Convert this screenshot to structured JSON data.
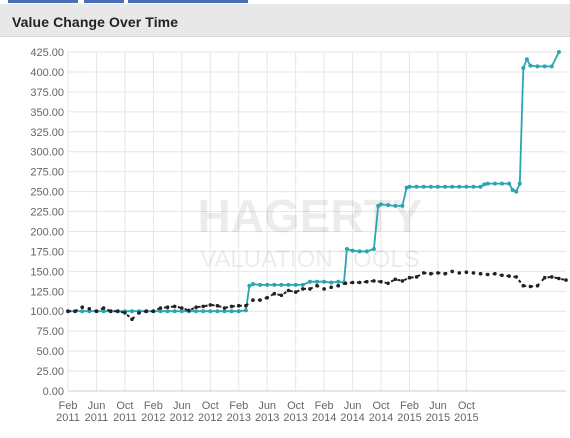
{
  "header": {
    "title": "Value Change Over Time"
  },
  "watermark": {
    "brand": "HAGERTY",
    "tagline": "VALUATION TOOLS"
  },
  "colors": {
    "series_a": "#2aa6b1",
    "series_b": "#222222",
    "grid": "#e6e6e6",
    "axis_text": "#666666"
  },
  "chart_data": {
    "type": "line",
    "title": "Value Change Over Time",
    "xlabel": "",
    "ylabel": "",
    "ylim": [
      0,
      425
    ],
    "yticks": [
      "0.00",
      "25.00",
      "50.00",
      "75.00",
      "100.00",
      "125.00",
      "150.00",
      "175.00",
      "200.00",
      "225.00",
      "250.00",
      "275.00",
      "300.00",
      "325.00",
      "350.00",
      "375.00",
      "400.00",
      "425.00"
    ],
    "xticks": [
      {
        "month": "Feb",
        "year": "2011",
        "t": 0
      },
      {
        "month": "Jun",
        "year": "2011",
        "t": 4
      },
      {
        "month": "Oct",
        "year": "2011",
        "t": 8
      },
      {
        "month": "Feb",
        "year": "2012",
        "t": 12
      },
      {
        "month": "Jun",
        "year": "2012",
        "t": 16
      },
      {
        "month": "Oct",
        "year": "2012",
        "t": 20
      },
      {
        "month": "Feb",
        "year": "2013",
        "t": 24
      },
      {
        "month": "Jun",
        "year": "2013",
        "t": 28
      },
      {
        "month": "Oct",
        "year": "2013",
        "t": 32
      },
      {
        "month": "Feb",
        "year": "2014",
        "t": 36
      },
      {
        "month": "Jun",
        "year": "2014",
        "t": 40
      },
      {
        "month": "Oct",
        "year": "2014",
        "t": 44
      },
      {
        "month": "Feb",
        "year": "2015",
        "t": 48
      },
      {
        "month": "Jun",
        "year": "2015",
        "t": 52
      },
      {
        "month": "Oct",
        "year": "2015",
        "t": 56
      }
    ],
    "series": [
      {
        "style": "solid",
        "points": [
          [
            0,
            100
          ],
          [
            1,
            100
          ],
          [
            2,
            100
          ],
          [
            3,
            100
          ],
          [
            4,
            100
          ],
          [
            5,
            100
          ],
          [
            6,
            100
          ],
          [
            7,
            100
          ],
          [
            8,
            100
          ],
          [
            9,
            100
          ],
          [
            10,
            100
          ],
          [
            11,
            100
          ],
          [
            12,
            100
          ],
          [
            13,
            100
          ],
          [
            14,
            100
          ],
          [
            15,
            100
          ],
          [
            16,
            100
          ],
          [
            17,
            100
          ],
          [
            18,
            100
          ],
          [
            19,
            100
          ],
          [
            20,
            100
          ],
          [
            21,
            100
          ],
          [
            22,
            100
          ],
          [
            23,
            100
          ],
          [
            24,
            100
          ],
          [
            25,
            101
          ],
          [
            25.5,
            132
          ],
          [
            26,
            134
          ],
          [
            27,
            133
          ],
          [
            28,
            133
          ],
          [
            29,
            133
          ],
          [
            30,
            133
          ],
          [
            31,
            133
          ],
          [
            32,
            133
          ],
          [
            33,
            133
          ],
          [
            34,
            137
          ],
          [
            35,
            137
          ],
          [
            36,
            137
          ],
          [
            37,
            136
          ],
          [
            38,
            137
          ],
          [
            38.8,
            136
          ],
          [
            39.2,
            178
          ],
          [
            40,
            176
          ],
          [
            41,
            175
          ],
          [
            42,
            175
          ],
          [
            43,
            178
          ],
          [
            43.6,
            232
          ],
          [
            44,
            234
          ],
          [
            45,
            233
          ],
          [
            46,
            232
          ],
          [
            47,
            232
          ],
          [
            47.6,
            255
          ],
          [
            48,
            256
          ],
          [
            49,
            256
          ],
          [
            50,
            256
          ],
          [
            51,
            256
          ],
          [
            52,
            256
          ],
          [
            53,
            256
          ],
          [
            54,
            256
          ],
          [
            55,
            256
          ],
          [
            56,
            256
          ],
          [
            57,
            256
          ],
          [
            58,
            256
          ],
          [
            58.5,
            259
          ],
          [
            59,
            260
          ],
          [
            60,
            260
          ],
          [
            61,
            260
          ],
          [
            62,
            260
          ],
          [
            62.5,
            252
          ],
          [
            63,
            250
          ],
          [
            63.5,
            260
          ],
          [
            64,
            405
          ],
          [
            64.5,
            416
          ],
          [
            65,
            408
          ],
          [
            66,
            407
          ],
          [
            67,
            407
          ],
          [
            68,
            407
          ],
          [
            69,
            425
          ]
        ]
      },
      {
        "style": "dashed",
        "points": [
          [
            0,
            100
          ],
          [
            1,
            100
          ],
          [
            2,
            105
          ],
          [
            3,
            103
          ],
          [
            4,
            100
          ],
          [
            5,
            104
          ],
          [
            6,
            100
          ],
          [
            7,
            100
          ],
          [
            8,
            98
          ],
          [
            9,
            90
          ],
          [
            10,
            98
          ],
          [
            11,
            100
          ],
          [
            12,
            100
          ],
          [
            13,
            104
          ],
          [
            14,
            105
          ],
          [
            15,
            106
          ],
          [
            16,
            104
          ],
          [
            17,
            101
          ],
          [
            18,
            105
          ],
          [
            19,
            106
          ],
          [
            20,
            108
          ],
          [
            21,
            107
          ],
          [
            22,
            104
          ],
          [
            23,
            106
          ],
          [
            24,
            107
          ],
          [
            25,
            107
          ],
          [
            26,
            114
          ],
          [
            27,
            114
          ],
          [
            28,
            117
          ],
          [
            29,
            122
          ],
          [
            30,
            120
          ],
          [
            31,
            126
          ],
          [
            32,
            124
          ],
          [
            33,
            128
          ],
          [
            34,
            128
          ],
          [
            35,
            132
          ],
          [
            36,
            128
          ],
          [
            37,
            130
          ],
          [
            38,
            132
          ],
          [
            39,
            135
          ],
          [
            40,
            136
          ],
          [
            41,
            136
          ],
          [
            42,
            137
          ],
          [
            43,
            138
          ],
          [
            44,
            137
          ],
          [
            45,
            135
          ],
          [
            46,
            140
          ],
          [
            47,
            138
          ],
          [
            48,
            142
          ],
          [
            49,
            143
          ],
          [
            50,
            148
          ],
          [
            51,
            147
          ],
          [
            52,
            148
          ],
          [
            53,
            147
          ],
          [
            54,
            150
          ],
          [
            55,
            148
          ],
          [
            56,
            149
          ],
          [
            57,
            148
          ],
          [
            58,
            147
          ],
          [
            59,
            146
          ],
          [
            60,
            147
          ],
          [
            61,
            145
          ],
          [
            62,
            144
          ],
          [
            63,
            143
          ],
          [
            64,
            132
          ],
          [
            65,
            131
          ],
          [
            66,
            132
          ],
          [
            67,
            142
          ],
          [
            68,
            143
          ],
          [
            69,
            141
          ],
          [
            70,
            139
          ]
        ]
      }
    ]
  }
}
